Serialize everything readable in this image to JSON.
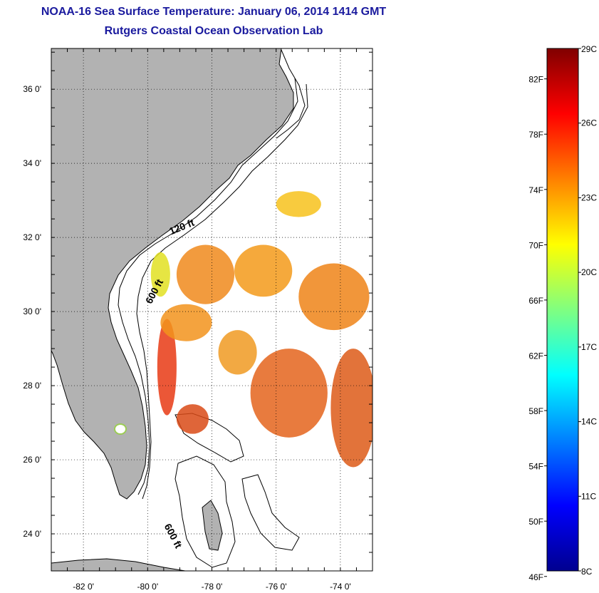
{
  "header": {
    "title": "NOAA-16 Sea Surface Temperature:  January 06, 2014 1414 GMT",
    "subtitle": "Rutgers Coastal Ocean Observation Lab"
  },
  "map": {
    "lat_range": [
      23,
      37.1
    ],
    "lon_range": [
      -83,
      -73
    ],
    "lat_ticks": [
      {
        "value": 24,
        "label": "24 0'"
      },
      {
        "value": 26,
        "label": "26 0'"
      },
      {
        "value": 28,
        "label": "28 0'"
      },
      {
        "value": 30,
        "label": "30 0'"
      },
      {
        "value": 32,
        "label": "32 0'"
      },
      {
        "value": 34,
        "label": "34 0'"
      },
      {
        "value": 36,
        "label": "36 0'"
      }
    ],
    "lon_ticks": [
      {
        "value": -82,
        "label": "-82 0'"
      },
      {
        "value": -80,
        "label": "-80 0'"
      },
      {
        "value": -78,
        "label": "-78 0'"
      },
      {
        "value": -76,
        "label": "-76 0'"
      },
      {
        "value": -74,
        "label": "-74 0'"
      }
    ],
    "contour_labels": [
      {
        "text": "120 ft",
        "lon": -78.9,
        "lat": 32.2,
        "rotate": -22
      },
      {
        "text": "600 ft",
        "lon": -79.7,
        "lat": 30.5,
        "rotate": -62
      },
      {
        "text": "600 ft",
        "lon": -79.3,
        "lat": 23.9,
        "rotate": 62
      }
    ],
    "grid": "dotted",
    "land_color": "#b2b2b2",
    "sst_patches": [
      {
        "lon": -75.3,
        "lat": 32.9,
        "rx": 0.7,
        "ry": 0.35,
        "color": "#f7c21c"
      },
      {
        "lon": -78.2,
        "lat": 31.0,
        "rx": 0.9,
        "ry": 0.8,
        "color": "#f08a1c"
      },
      {
        "lon": -76.4,
        "lat": 31.1,
        "rx": 0.9,
        "ry": 0.7,
        "color": "#f39a1a"
      },
      {
        "lon": -74.2,
        "lat": 30.4,
        "rx": 1.1,
        "ry": 0.9,
        "color": "#ee8418"
      },
      {
        "lon": -79.4,
        "lat": 28.5,
        "rx": 0.3,
        "ry": 1.3,
        "color": "#e83a14"
      },
      {
        "lon": -78.8,
        "lat": 29.7,
        "rx": 0.8,
        "ry": 0.5,
        "color": "#f2931c"
      },
      {
        "lon": -75.6,
        "lat": 27.8,
        "rx": 1.2,
        "ry": 1.2,
        "color": "#e4641c"
      },
      {
        "lon": -73.6,
        "lat": 27.4,
        "rx": 0.7,
        "ry": 1.6,
        "color": "#dd5a18"
      },
      {
        "lon": -79.6,
        "lat": 31.0,
        "rx": 0.3,
        "ry": 0.6,
        "color": "#e2e022"
      },
      {
        "lon": -77.2,
        "lat": 28.9,
        "rx": 0.6,
        "ry": 0.6,
        "color": "#f09a22"
      },
      {
        "lon": -78.6,
        "lat": 27.1,
        "rx": 0.5,
        "ry": 0.4,
        "color": "#d94a16"
      }
    ]
  },
  "colorbar": {
    "min_c": 8,
    "max_c": 29,
    "celsius_ticks": [
      {
        "value": 29,
        "label": "29C"
      },
      {
        "value": 26,
        "label": "26C"
      },
      {
        "value": 23,
        "label": "23C"
      },
      {
        "value": 20,
        "label": "20C"
      },
      {
        "value": 17,
        "label": "17C"
      },
      {
        "value": 14,
        "label": "14C"
      },
      {
        "value": 11,
        "label": "11C"
      },
      {
        "value": 8,
        "label": "8C"
      }
    ],
    "fahrenheit_ticks": [
      {
        "value": 82,
        "label": "82F"
      },
      {
        "value": 78,
        "label": "78F"
      },
      {
        "value": 74,
        "label": "74F"
      },
      {
        "value": 70,
        "label": "70F"
      },
      {
        "value": 66,
        "label": "66F"
      },
      {
        "value": 62,
        "label": "62F"
      },
      {
        "value": 58,
        "label": "58F"
      },
      {
        "value": 54,
        "label": "54F"
      },
      {
        "value": 50,
        "label": "50F"
      },
      {
        "value": 46,
        "label": "46F"
      }
    ],
    "stops": [
      "#800000",
      "#ff0000",
      "#ff8000",
      "#ffff00",
      "#80ff80",
      "#00ffff",
      "#0080ff",
      "#0000ff",
      "#00008f"
    ]
  }
}
